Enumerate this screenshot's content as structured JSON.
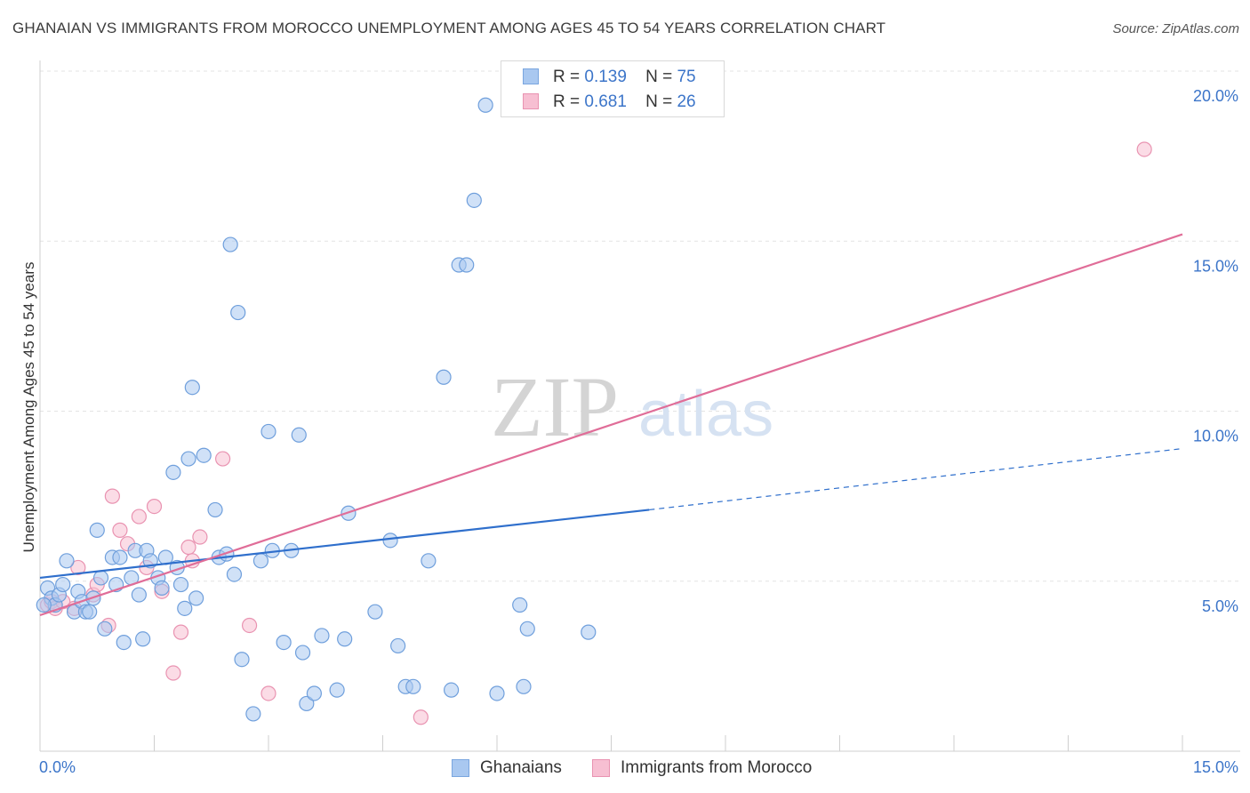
{
  "title": "GHANAIAN VS IMMIGRANTS FROM MOROCCO UNEMPLOYMENT AMONG AGES 45 TO 54 YEARS CORRELATION CHART",
  "source": "Source: ZipAtlas.com",
  "watermark": {
    "zip": "ZIP",
    "atlas": "atlas"
  },
  "legend": {
    "r_label": "R =",
    "n_label": "N =",
    "series": [
      {
        "r": "0.139",
        "n": "75",
        "color": "#a9c8f0",
        "stroke": "#7aa6df"
      },
      {
        "r": "0.681",
        "n": "26",
        "color": "#f7bfd2",
        "stroke": "#e993b1"
      }
    ]
  },
  "bottom_legend": [
    "Ghanaians",
    "Immigrants from Morocco"
  ],
  "chart_data": {
    "type": "scatter",
    "title": "GHANAIAN VS IMMIGRANTS FROM MOROCCO UNEMPLOYMENT AMONG AGES 45 TO 54 YEARS CORRELATION CHART",
    "xlabel": "",
    "ylabel": "Unemployment Among Ages 45 to 54 years",
    "xlim": [
      0,
      15
    ],
    "ylim": [
      0,
      20
    ],
    "x_tick_labels": [
      {
        "value": 0,
        "label": "0.0%"
      },
      {
        "value": 15,
        "label": "15.0%"
      }
    ],
    "y_tick_labels": [
      {
        "value": 5,
        "label": "5.0%"
      },
      {
        "value": 10,
        "label": "10.0%"
      },
      {
        "value": 15,
        "label": "15.0%"
      },
      {
        "value": 20,
        "label": "20.0%"
      }
    ],
    "grid": true,
    "series": [
      {
        "name": "Ghanaians",
        "color": "#a9c8f0",
        "stroke": "#6f9fdc",
        "trend_color": "#2f6fcc",
        "trend": {
          "x0": 0,
          "y0": 5.1,
          "x1": 8.0,
          "y1": 7.1,
          "dashed_to_x": 15,
          "dashed_to_y": 8.9
        },
        "points": [
          [
            0.1,
            4.8
          ],
          [
            0.15,
            4.5
          ],
          [
            0.2,
            4.3
          ],
          [
            0.25,
            4.6
          ],
          [
            0.3,
            4.9
          ],
          [
            0.35,
            5.6
          ],
          [
            0.45,
            4.1
          ],
          [
            0.5,
            4.7
          ],
          [
            0.55,
            4.4
          ],
          [
            0.6,
            4.1
          ],
          [
            0.65,
            4.1
          ],
          [
            0.7,
            4.5
          ],
          [
            0.75,
            6.5
          ],
          [
            0.8,
            5.1
          ],
          [
            0.85,
            3.6
          ],
          [
            0.95,
            5.7
          ],
          [
            1.0,
            4.9
          ],
          [
            1.05,
            5.7
          ],
          [
            1.1,
            3.2
          ],
          [
            1.2,
            5.1
          ],
          [
            1.25,
            5.9
          ],
          [
            1.3,
            4.6
          ],
          [
            1.35,
            3.3
          ],
          [
            1.4,
            5.9
          ],
          [
            1.45,
            5.6
          ],
          [
            1.55,
            5.1
          ],
          [
            1.6,
            4.8
          ],
          [
            1.65,
            5.7
          ],
          [
            1.75,
            8.2
          ],
          [
            1.8,
            5.4
          ],
          [
            1.85,
            4.9
          ],
          [
            1.9,
            4.2
          ],
          [
            1.95,
            8.6
          ],
          [
            2.0,
            10.7
          ],
          [
            2.05,
            4.5
          ],
          [
            2.15,
            8.7
          ],
          [
            2.3,
            7.1
          ],
          [
            2.35,
            5.7
          ],
          [
            2.45,
            5.8
          ],
          [
            2.5,
            14.9
          ],
          [
            2.55,
            5.2
          ],
          [
            2.6,
            12.9
          ],
          [
            2.65,
            2.7
          ],
          [
            2.8,
            1.1
          ],
          [
            2.9,
            5.6
          ],
          [
            3.0,
            9.4
          ],
          [
            3.05,
            5.9
          ],
          [
            3.2,
            3.2
          ],
          [
            3.3,
            5.9
          ],
          [
            3.4,
            9.3
          ],
          [
            3.45,
            2.9
          ],
          [
            3.5,
            1.4
          ],
          [
            3.6,
            1.7
          ],
          [
            3.7,
            3.4
          ],
          [
            3.9,
            1.8
          ],
          [
            4.0,
            3.3
          ],
          [
            4.05,
            7.0
          ],
          [
            4.4,
            4.1
          ],
          [
            4.6,
            6.2
          ],
          [
            4.7,
            3.1
          ],
          [
            4.8,
            1.9
          ],
          [
            4.9,
            1.9
          ],
          [
            5.1,
            5.6
          ],
          [
            5.3,
            11.0
          ],
          [
            5.4,
            1.8
          ],
          [
            5.5,
            14.3
          ],
          [
            5.6,
            14.3
          ],
          [
            5.7,
            16.2
          ],
          [
            5.85,
            19.0
          ],
          [
            6.0,
            1.7
          ],
          [
            6.3,
            4.3
          ],
          [
            6.35,
            1.9
          ],
          [
            6.4,
            3.6
          ],
          [
            7.2,
            3.5
          ],
          [
            0.05,
            4.3
          ]
        ]
      },
      {
        "name": "Immigrants from Morocco",
        "color": "#f7bfd2",
        "stroke": "#e993b1",
        "trend_color": "#e06d98",
        "trend": {
          "x0": 0,
          "y0": 4.0,
          "x1": 15,
          "y1": 15.2
        },
        "points": [
          [
            0.1,
            4.3
          ],
          [
            0.15,
            4.4
          ],
          [
            0.2,
            4.2
          ],
          [
            0.3,
            4.4
          ],
          [
            0.45,
            4.2
          ],
          [
            0.5,
            5.4
          ],
          [
            0.7,
            4.6
          ],
          [
            0.75,
            4.9
          ],
          [
            0.9,
            3.7
          ],
          [
            0.95,
            7.5
          ],
          [
            1.05,
            6.5
          ],
          [
            1.15,
            6.1
          ],
          [
            1.3,
            6.9
          ],
          [
            1.4,
            5.4
          ],
          [
            1.5,
            7.2
          ],
          [
            1.6,
            4.7
          ],
          [
            1.75,
            2.3
          ],
          [
            1.85,
            3.5
          ],
          [
            1.95,
            6.0
          ],
          [
            2.0,
            5.6
          ],
          [
            2.1,
            6.3
          ],
          [
            2.4,
            8.6
          ],
          [
            2.75,
            3.7
          ],
          [
            3.0,
            1.7
          ],
          [
            5.0,
            1.0
          ],
          [
            14.5,
            17.7
          ]
        ]
      }
    ]
  }
}
